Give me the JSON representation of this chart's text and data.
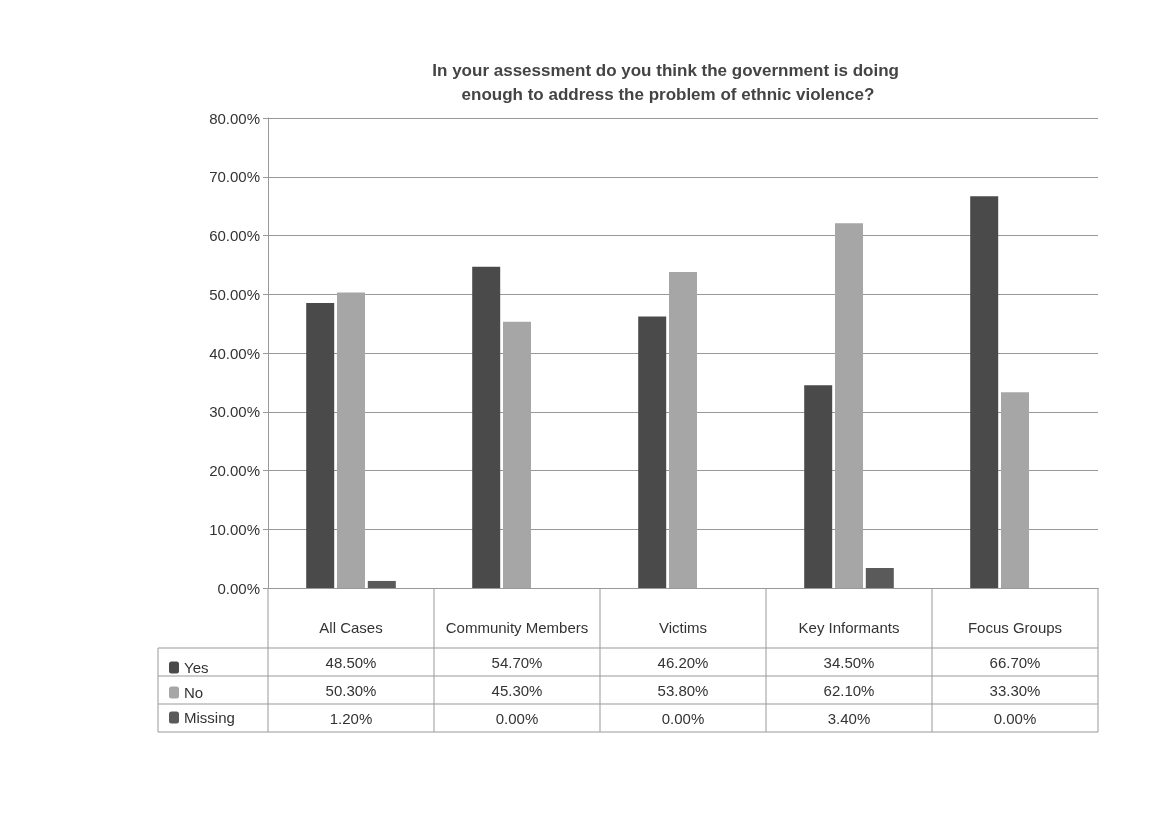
{
  "chart_data": {
    "type": "bar",
    "title": "In your assessment do you think the government is doing enough to address the problem of ethnic violence?",
    "categories": [
      "All Cases",
      "Community Members",
      "Victims",
      "Key Informants",
      "Focus Groups"
    ],
    "series": [
      {
        "name": "Yes",
        "color": "#4a4a4a",
        "values": [
          48.5,
          54.7,
          46.2,
          34.5,
          66.7
        ],
        "value_labels": [
          "48.50%",
          "54.70%",
          "46.20%",
          "34.50%",
          "66.70%"
        ]
      },
      {
        "name": "No",
        "color": "#a6a6a6",
        "values": [
          50.3,
          45.3,
          53.8,
          62.1,
          33.3
        ],
        "value_labels": [
          "50.30%",
          "45.30%",
          "53.80%",
          "62.10%",
          "33.30%"
        ]
      },
      {
        "name": "Missing",
        "color": "#5a5a5a",
        "values": [
          1.2,
          0,
          0,
          3.4,
          0
        ],
        "value_labels": [
          "1.20%",
          "0.00%",
          "0.00%",
          "3.40%",
          "0.00%"
        ]
      }
    ],
    "ylim": [
      0,
      80
    ],
    "yticks": [
      {
        "value": 0,
        "label": "0.00%"
      },
      {
        "value": 10,
        "label": "10.00%"
      },
      {
        "value": 20,
        "label": "20.00%"
      },
      {
        "value": 30,
        "label": "30.00%"
      },
      {
        "value": 40,
        "label": "40.00%"
      },
      {
        "value": 50,
        "label": "50.00%"
      },
      {
        "value": 60,
        "label": "60.00%"
      },
      {
        "value": 70,
        "label": "70.00%"
      },
      {
        "value": 80,
        "label": "80.00%"
      }
    ],
    "grid": "y",
    "legend": "bottom left"
  }
}
